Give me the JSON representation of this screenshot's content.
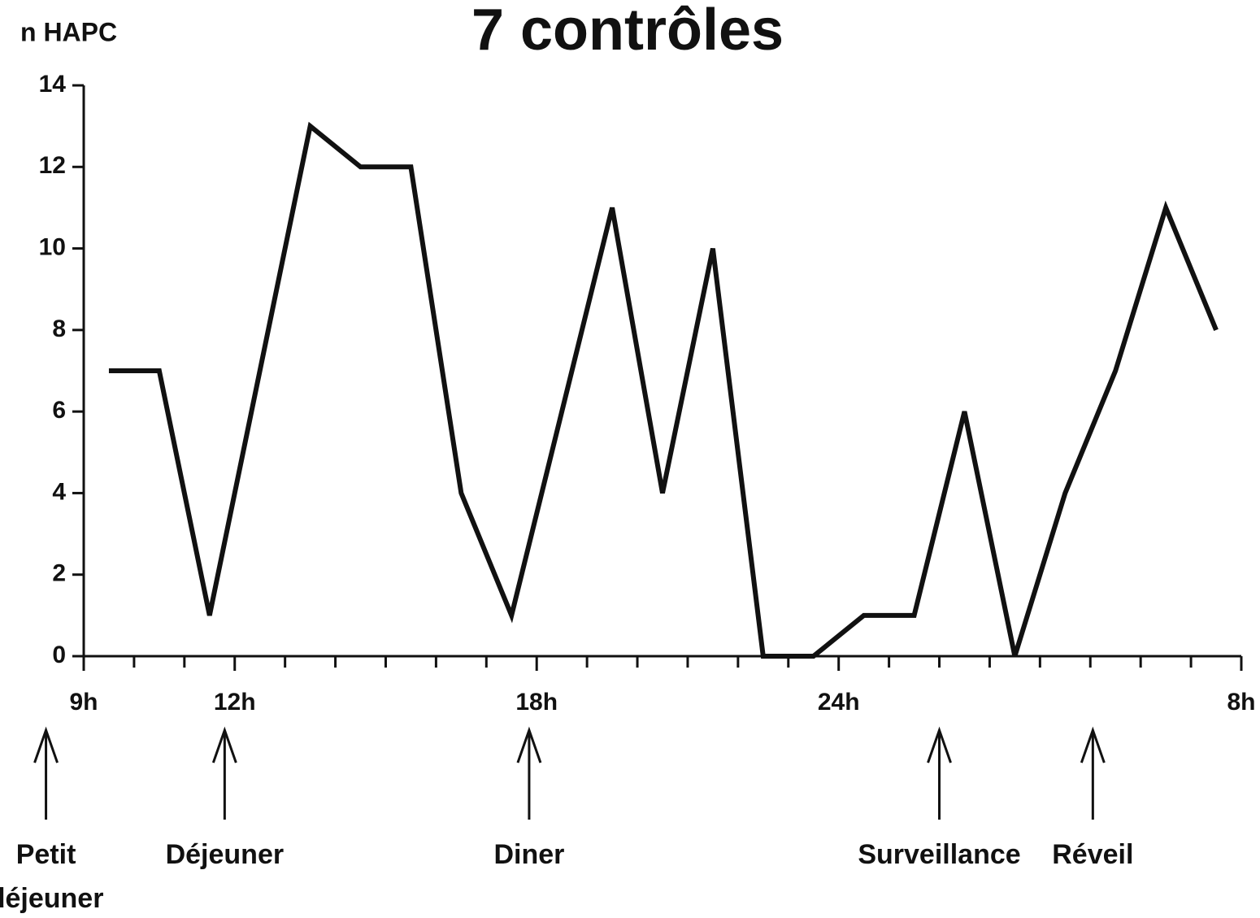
{
  "chart_data": {
    "type": "line",
    "title": "7 contrôles",
    "y_label": "n HAPC",
    "x": [
      9.5,
      10.5,
      11.5,
      12.5,
      13.5,
      14.5,
      15.5,
      16.5,
      17.5,
      18.5,
      19.5,
      20.5,
      21.5,
      22.5,
      23.5,
      24.5,
      25.5,
      26.5,
      27.5,
      28.5,
      29.5,
      30.5,
      31.5
    ],
    "series": [
      {
        "color": "#111111",
        "values": [
          7,
          7,
          1,
          7,
          13,
          12,
          12,
          4,
          1,
          6,
          11,
          4,
          10,
          0,
          0,
          1,
          1,
          6,
          0,
          4,
          7,
          11,
          8
        ]
      }
    ],
    "xlim": [
      9,
      32
    ],
    "xticks": [
      {
        "value": 9,
        "label": "9h"
      },
      {
        "value": 12,
        "label": "12h"
      },
      {
        "value": 18,
        "label": "18h"
      },
      {
        "value": 24,
        "label": "24h"
      },
      {
        "value": 32,
        "label": "8h"
      }
    ],
    "xminorticks": [
      10,
      11,
      13,
      14,
      15,
      16,
      17,
      19,
      20,
      21,
      22,
      23,
      25,
      26,
      27,
      28,
      29,
      30,
      31
    ],
    "ylim": [
      0,
      14
    ],
    "yticks": [
      0,
      2,
      4,
      6,
      8,
      10,
      12,
      14
    ],
    "annotations": [
      {
        "x": 8.25,
        "lines": [
          "Petit",
          "déjeuner"
        ]
      },
      {
        "x": 11.8,
        "lines": [
          "Déjeuner"
        ]
      },
      {
        "x": 17.85,
        "lines": [
          "Diner"
        ]
      },
      {
        "x": 26,
        "lines": [
          "Surveillance"
        ]
      },
      {
        "x": 29.05,
        "lines": [
          "Réveil"
        ]
      }
    ]
  }
}
